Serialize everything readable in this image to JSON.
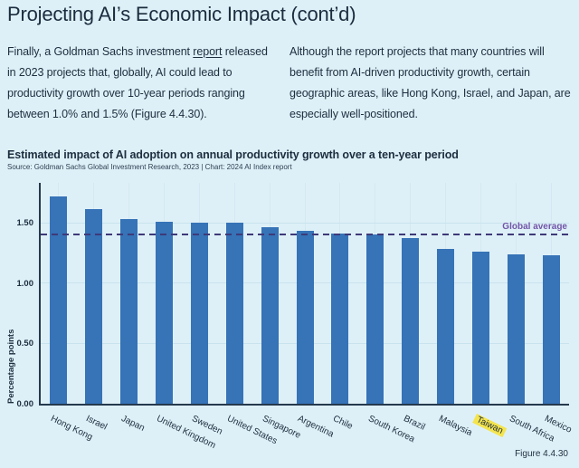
{
  "page": {
    "title": "Projecting AI’s Economic Impact (cont’d)",
    "figure_label": "Figure 4.4.30"
  },
  "intro": {
    "left_before_link": "Finally, a Goldman Sachs investment ",
    "left_link_text": "report",
    "left_after_link": " released in 2023 projects that, globally, AI could lead to productivity growth over 10-year periods ranging between 1.0% and 1.5% (Figure 4.4.30).",
    "right": "Although the report projects that many countries will benefit from AI-driven productivity growth, certain geographic areas, like Hong Kong, Israel, and Japan, are especially well-positioned."
  },
  "chart_data": {
    "type": "bar",
    "title": "Estimated impact of AI adoption on annual productivity growth over a ten-year period",
    "source": "Source: Goldman Sachs Global Investment Research, 2023 | Chart: 2024 AI Index report",
    "ylabel": "Percentage points",
    "xlabel": "",
    "categories": [
      "Hong Kong",
      "Israel",
      "Japan",
      "United Kingdom",
      "Sweden",
      "United States",
      "Singapore",
      "Argentina",
      "Chile",
      "South Korea",
      "Brazil",
      "Malaysia",
      "Taiwan",
      "South Africa",
      "Mexico"
    ],
    "values": [
      1.72,
      1.61,
      1.53,
      1.51,
      1.5,
      1.5,
      1.46,
      1.43,
      1.41,
      1.4,
      1.37,
      1.28,
      1.26,
      1.24,
      1.23
    ],
    "yticks": [
      "0.00",
      "0.50",
      "1.00",
      "1.50"
    ],
    "ylim": [
      0,
      1.83
    ],
    "grid": true,
    "legend_position": "none",
    "reference_line": {
      "label": "Global average",
      "value": 1.4
    },
    "highlighted_category": "Taiwan",
    "colors": {
      "bar": "#3673b7",
      "reference_line": "#3e3a79",
      "reference_label": "#7155a8",
      "highlight": "#f4e44e",
      "background": "#def0f7",
      "text": "#1d2e3f"
    }
  }
}
